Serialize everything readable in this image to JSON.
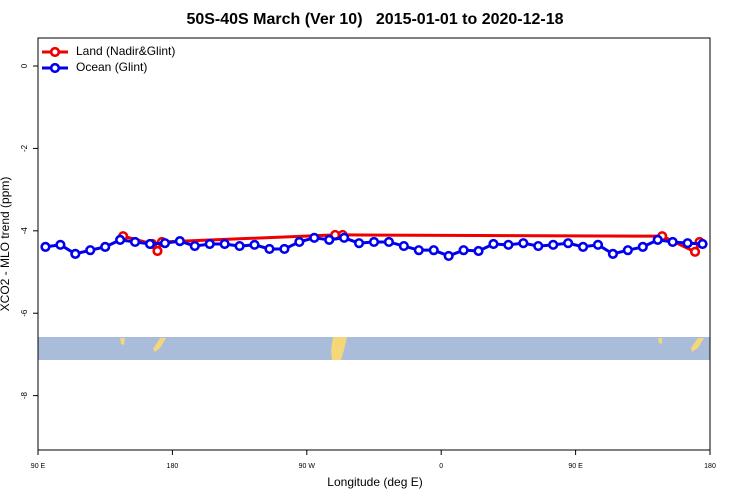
{
  "chart_data": {
    "type": "line",
    "title": "50S-40S March (Ver 10)   2015-01-01 to 2020-12-18",
    "x_label": "Longitude (deg E)",
    "y_label": "XCO2 - MLO trend (ppm)",
    "xlim": [
      90,
      540
    ],
    "ylim": [
      -9.32,
      0.68
    ],
    "xticks": [
      {
        "value": 90,
        "label": "90 E"
      },
      {
        "value": 180,
        "label": "180"
      },
      {
        "value": 270,
        "label": "90 W"
      },
      {
        "value": 360,
        "label": "0"
      },
      {
        "value": 450,
        "label": "90 E"
      },
      {
        "value": 540,
        "label": "180"
      }
    ],
    "yticks": [
      0,
      -2,
      -4,
      -6,
      -8
    ],
    "legend": "top-left",
    "series": [
      {
        "name": "Land (Nadir&Glint)",
        "color": "#ee0000",
        "x": [
          147,
          166.5,
          170,
          173,
          289,
          294,
          508,
          530,
          533
        ],
        "values": [
          -4.13,
          -4.32,
          -4.49,
          -4.27,
          -4.1,
          -4.1,
          -4.13,
          -4.51,
          -4.27
        ]
      },
      {
        "name": "Ocean (Glint)",
        "color": "#0000ee",
        "x": [
          95,
          105,
          115,
          125,
          135,
          145,
          155,
          165,
          175,
          185,
          195,
          205,
          215,
          225,
          235,
          245,
          255,
          265,
          275,
          285,
          295,
          305,
          315,
          325,
          335,
          345,
          355,
          365,
          375,
          385,
          395,
          405,
          415,
          425,
          435,
          445,
          455,
          465,
          475,
          485,
          495,
          505,
          515,
          525,
          535
        ],
        "values": [
          -4.39,
          -4.34,
          -4.56,
          -4.47,
          -4.39,
          -4.22,
          -4.27,
          -4.32,
          -4.3,
          -4.25,
          -4.37,
          -4.32,
          -4.32,
          -4.37,
          -4.34,
          -4.44,
          -4.44,
          -4.27,
          -4.17,
          -4.22,
          -4.17,
          -4.3,
          -4.27,
          -4.27,
          -4.37,
          -4.47,
          -4.47,
          -4.61,
          -4.47,
          -4.49,
          -4.32,
          -4.34,
          -4.3,
          -4.37,
          -4.34,
          -4.3,
          -4.39,
          -4.34,
          -4.56,
          -4.47,
          -4.39,
          -4.22,
          -4.27,
          -4.3,
          -4.32
        ]
      }
    ]
  }
}
